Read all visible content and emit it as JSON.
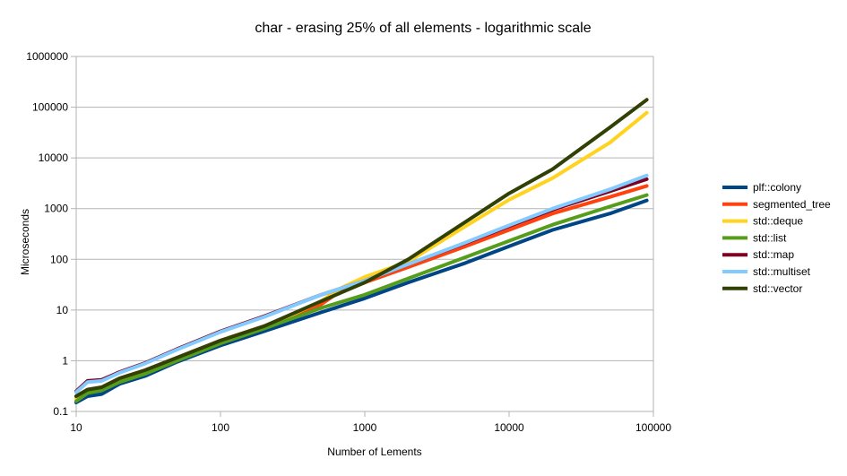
{
  "chart_data": {
    "type": "line",
    "title": "char - erasing 25% of all elements - logarithmic scale",
    "xlabel": "Number of Lements",
    "ylabel": "Microseconds",
    "x_scale": "log",
    "y_scale": "log",
    "xlim": [
      10,
      100000
    ],
    "ylim": [
      0.1,
      1000000
    ],
    "x_ticks": [
      "10",
      "100",
      "1000",
      "10000",
      "100000"
    ],
    "y_ticks": [
      "0.1",
      "1",
      "10",
      "100",
      "1000",
      "10000",
      "100000",
      "1000000"
    ],
    "grid": "horizontal",
    "legend_position": "right",
    "series": [
      {
        "name": "plf::colony",
        "color": "#004586",
        "x": [
          10,
          12,
          15,
          20,
          30,
          50,
          100,
          200,
          500,
          1000,
          2000,
          5000,
          10000,
          20000,
          50000,
          90000
        ],
        "y": [
          0.15,
          0.2,
          0.22,
          0.35,
          0.5,
          0.95,
          2.0,
          3.8,
          9,
          17,
          35,
          85,
          180,
          380,
          800,
          1450
        ]
      },
      {
        "name": "segmented_tree",
        "color": "#ff420e",
        "x": [
          10,
          12,
          15,
          20,
          30,
          50,
          100,
          200,
          500,
          700,
          1000,
          2000,
          5000,
          10000,
          20000,
          50000,
          90000
        ],
        "y": [
          0.2,
          0.27,
          0.3,
          0.45,
          0.65,
          1.15,
          2.5,
          4.8,
          13,
          25,
          35,
          70,
          180,
          380,
          800,
          1700,
          2800
        ]
      },
      {
        "name": "std::deque",
        "color": "#ffd320",
        "x": [
          10,
          12,
          15,
          20,
          30,
          50,
          100,
          200,
          500,
          700,
          1000,
          2000,
          5000,
          10000,
          20000,
          50000,
          90000
        ],
        "y": [
          0.18,
          0.25,
          0.28,
          0.4,
          0.6,
          1.05,
          2.3,
          4.5,
          15,
          28,
          45,
          90,
          450,
          1500,
          4000,
          20000,
          78000
        ]
      },
      {
        "name": "std::list",
        "color": "#579d1c",
        "x": [
          10,
          12,
          15,
          20,
          30,
          50,
          100,
          200,
          500,
          1000,
          2000,
          5000,
          10000,
          20000,
          50000,
          90000
        ],
        "y": [
          0.16,
          0.23,
          0.26,
          0.38,
          0.55,
          1.0,
          2.2,
          4.3,
          11,
          20,
          42,
          110,
          230,
          480,
          1100,
          1850
        ]
      },
      {
        "name": "std::map",
        "color": "#7e0021",
        "x": [
          10,
          12,
          15,
          20,
          30,
          50,
          100,
          200,
          500,
          1000,
          2000,
          5000,
          10000,
          20000,
          50000,
          90000
        ],
        "y": [
          0.25,
          0.4,
          0.42,
          0.6,
          0.9,
          1.7,
          3.8,
          7.5,
          20,
          38,
          80,
          210,
          450,
          950,
          2200,
          3800
        ]
      },
      {
        "name": "std::multiset",
        "color": "#83caff",
        "x": [
          10,
          12,
          15,
          20,
          30,
          50,
          100,
          200,
          500,
          1000,
          2000,
          5000,
          10000,
          20000,
          50000,
          90000
        ],
        "y": [
          0.24,
          0.38,
          0.4,
          0.58,
          0.88,
          1.65,
          3.7,
          7.3,
          20,
          38,
          80,
          215,
          470,
          1000,
          2400,
          4500
        ]
      },
      {
        "name": "std::vector",
        "color": "#314004",
        "x": [
          10,
          12,
          15,
          20,
          30,
          50,
          100,
          200,
          500,
          1000,
          2000,
          5000,
          10000,
          20000,
          50000,
          90000
        ],
        "y": [
          0.2,
          0.27,
          0.3,
          0.45,
          0.65,
          1.15,
          2.5,
          4.8,
          15,
          35,
          100,
          550,
          2000,
          6000,
          40000,
          140000
        ]
      }
    ]
  }
}
